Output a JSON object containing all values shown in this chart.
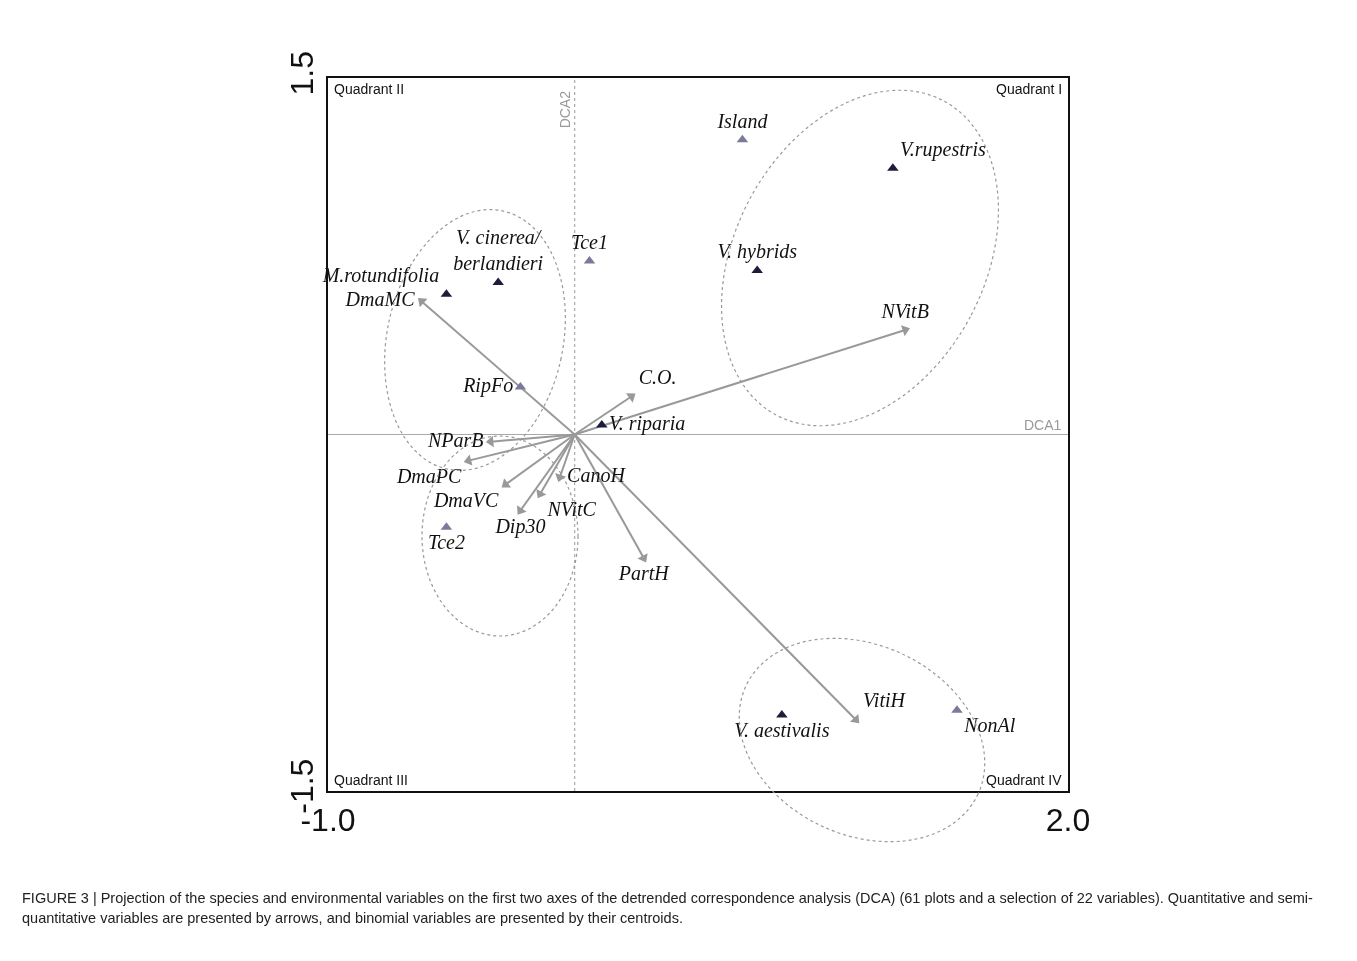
{
  "chart_data": {
    "type": "scatter",
    "marker": "triangle",
    "xlim": [
      -1.0,
      2.0
    ],
    "xticks": [
      {
        "value": -1.0,
        "label": "-1.0"
      },
      {
        "value": 2.0,
        "label": "2.0"
      }
    ],
    "ylim": [
      -1.5,
      1.5
    ],
    "yticks": [
      {
        "value": -1.5,
        "label": "-1.5"
      },
      {
        "value": 1.5,
        "label": "1.5"
      }
    ],
    "ref_lines": [
      {
        "axis": "x",
        "value": 0,
        "label": "DCA2",
        "color": "#aaaaaa",
        "line_style": "dotted"
      },
      {
        "axis": "y",
        "value": 0,
        "label": "DCA1",
        "color": "#aaaaaa",
        "line_style": "solid"
      }
    ],
    "annotations": [
      "Quadrant II",
      "Quadrant I",
      "Quadrant III",
      "Quadrant IV",
      "FIGURE 3 | Projection of the species and environmental variables on the first two axes of the detrended correspondence analysis (DCA) (61 plots and a selection of 22 variables). Quantitative and semi-quantitative variables are presented by arrows, and binomial variables are presented by their centroids."
    ],
    "series": [
      {
        "color": "#1c1c3c",
        "x": [
          1.29,
          0.74,
          -0.31,
          -0.52,
          0.11,
          0.84
        ],
        "values": [
          1.12,
          0.69,
          0.64,
          0.59,
          0.04,
          -1.18
        ],
        "value_labels": [
          "V.rupestris",
          "V. hybrids",
          "V. cinerea/\nberlandieri",
          "M.rotundifolia",
          "V. riparia",
          "V. aestivalis"
        ]
      },
      {
        "color": "#7a7a9a",
        "x": [
          0.68,
          0.06,
          -0.22,
          -0.52,
          1.55
        ],
        "values": [
          1.24,
          0.73,
          0.2,
          -0.39,
          -1.16
        ],
        "value_labels": [
          "Island",
          "Tce1",
          "RipFo",
          "Tce2",
          "NonAl"
        ]
      },
      {
        "marker": "triangle",
        "color": "#999999",
        "x": [
          1.34,
          -0.62,
          0.23,
          -0.34,
          -0.43,
          -0.28,
          -0.06,
          -0.14,
          -0.22,
          0.28,
          1.14
        ],
        "values": [
          0.44,
          0.56,
          0.16,
          -0.03,
          -0.11,
          -0.21,
          -0.18,
          -0.25,
          -0.32,
          -0.52,
          -1.2
        ],
        "value_labels": [
          "NVitB",
          "DmaMC",
          "C.O.",
          "NParB",
          "DmaPC",
          "DmaVC",
          "CanoH",
          "NVitC",
          "Dip30",
          "PartH",
          "VitiH"
        ]
      }
    ]
  }
}
